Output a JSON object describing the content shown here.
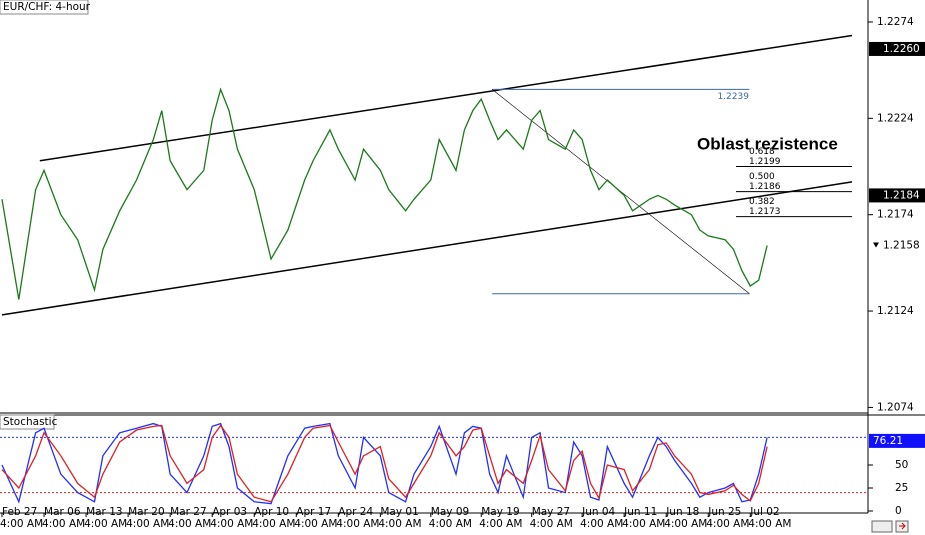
{
  "chart_data": [
    {
      "type": "line",
      "title": "EUR/CHF: 4-hour",
      "xlim": [
        0,
        103
      ],
      "xticks": [
        {
          "value": 0,
          "label": "Feb 27"
        },
        {
          "value": 5,
          "label": "Mar 06"
        },
        {
          "value": 10,
          "label": "Mar 13"
        },
        {
          "value": 15,
          "label": "Mar 20"
        },
        {
          "value": 20,
          "label": "Mar 27"
        },
        {
          "value": 25,
          "label": "Apr 03"
        },
        {
          "value": 30,
          "label": "Apr 10"
        },
        {
          "value": 35,
          "label": "Apr 17"
        },
        {
          "value": 40,
          "label": "Apr 24"
        },
        {
          "value": 45,
          "label": "May 01"
        },
        {
          "value": 51,
          "label": "May 09"
        },
        {
          "value": 57,
          "label": "May 19"
        },
        {
          "value": 63,
          "label": "May 27"
        },
        {
          "value": 69,
          "label": "Jun 04"
        },
        {
          "value": 74,
          "label": "Jun 11"
        },
        {
          "value": 79,
          "label": "Jun 18"
        },
        {
          "value": 84,
          "label": "Jun 25"
        },
        {
          "value": 89,
          "label": "Jul 02"
        }
      ],
      "xtick_time": "4:00 AM",
      "ylim": [
        1.20711,
        1.22854
      ],
      "yticks": [
        1.2274,
        1.2224,
        1.2174,
        1.2124,
        1.2074
      ],
      "price_markers": [
        {
          "value": 1.226,
          "label": "1.2260"
        },
        1.2184,
        1.2158
      ],
      "x": [
        0,
        2,
        4,
        5,
        7,
        9,
        11,
        12,
        14,
        16,
        18,
        19,
        20,
        22,
        24,
        25,
        26,
        27,
        28,
        30,
        32,
        34,
        36,
        37,
        39,
        40,
        42,
        43,
        45,
        46,
        48,
        49,
        51,
        52,
        54,
        55,
        56,
        57,
        58,
        59,
        60,
        62,
        63,
        64,
        65,
        67,
        68,
        69,
        70,
        71,
        72,
        74,
        75,
        77,
        78,
        79,
        80,
        82,
        83,
        84,
        86,
        87,
        88,
        89,
        90,
        91
      ],
      "series": [
        {
          "color": "#1a7a1a",
          "values": [
            1.2182,
            1.213,
            1.2187,
            1.2197,
            1.2174,
            1.2161,
            1.2135,
            1.2156,
            1.2176,
            1.2192,
            1.2213,
            1.2228,
            1.2202,
            1.2187,
            1.2197,
            1.2223,
            1.2239,
            1.2228,
            1.2208,
            1.2187,
            1.2151,
            1.2166,
            1.2192,
            1.2202,
            1.2218,
            1.2208,
            1.2192,
            1.2208,
            1.2197,
            1.2187,
            1.2176,
            1.2182,
            1.2192,
            1.2213,
            1.2197,
            1.2218,
            1.2228,
            1.2234,
            1.2223,
            1.2213,
            1.2218,
            1.2208,
            1.2223,
            1.2228,
            1.2213,
            1.2208,
            1.2218,
            1.2213,
            1.2197,
            1.2187,
            1.2192,
            1.2184,
            1.2176,
            1.2182,
            1.2184,
            1.2182,
            1.2179,
            1.2174,
            1.2166,
            1.2163,
            1.2161,
            1.2156,
            1.2145,
            1.2137,
            1.214,
            1.2158
          ]
        }
      ],
      "trendlines": [
        {
          "x": [
            4.5,
            101.1
          ],
          "y": [
            1.2202,
            1.2267
          ]
        },
        {
          "x": [
            0,
            101.1
          ],
          "y": [
            1.2122,
            1.2191
          ]
        }
      ],
      "fib": {
        "high": 1.2239,
        "low": 1.2133,
        "x": [
          58.3,
          88.9
        ],
        "levels_x": [
          87.3,
          101.1
        ],
        "levels": [
          {
            "ratio": 0.618,
            "price": 1.2199
          },
          {
            "ratio": {
              "value": 0.5,
              "label": "0.500"
            },
            "price": 1.2186
          },
          {
            "ratio": 0.382,
            "price": 1.2173
          }
        ]
      },
      "annotation": "Oblast rezistence"
    },
    {
      "type": "line",
      "title": "Stochastic",
      "ylim": [
        0,
        100
      ],
      "yticks": [
        50,
        25,
        0
      ],
      "marker": 76.21,
      "levels": [
        80,
        20
      ],
      "x": [
        0,
        2,
        4,
        5,
        7,
        9,
        11,
        12,
        14,
        16,
        18,
        19,
        20,
        22,
        24,
        25,
        26,
        27,
        28,
        30,
        32,
        34,
        36,
        37,
        39,
        40,
        42,
        43,
        45,
        46,
        48,
        49,
        51,
        52,
        54,
        55,
        56,
        57,
        58,
        59,
        60,
        62,
        63,
        64,
        65,
        67,
        68,
        69,
        70,
        71,
        72,
        74,
        75,
        77,
        78,
        79,
        80,
        82,
        83,
        84,
        86,
        87,
        88,
        89,
        90,
        91
      ],
      "series": [
        {
          "color": "#2030ff",
          "values": [
            50,
            10,
            85,
            90,
            40,
            20,
            10,
            60,
            85,
            90,
            95,
            92,
            40,
            20,
            60,
            92,
            95,
            70,
            25,
            10,
            8,
            60,
            90,
            92,
            95,
            60,
            25,
            80,
            60,
            20,
            10,
            40,
            70,
            92,
            40,
            85,
            92,
            90,
            40,
            20,
            60,
            15,
            80,
            85,
            25,
            20,
            75,
            60,
            15,
            12,
            70,
            30,
            15,
            60,
            80,
            70,
            55,
            30,
            15,
            20,
            25,
            30,
            10,
            12,
            40,
            80
          ]
        },
        {
          "color": "#e02020",
          "values": [
            45,
            25,
            60,
            85,
            60,
            30,
            15,
            40,
            75,
            88,
            92,
            93,
            60,
            30,
            45,
            80,
            93,
            80,
            40,
            15,
            10,
            40,
            80,
            90,
            93,
            75,
            40,
            60,
            70,
            35,
            15,
            30,
            60,
            85,
            60,
            70,
            88,
            90,
            60,
            30,
            45,
            30,
            55,
            82,
            45,
            22,
            55,
            65,
            30,
            14,
            50,
            45,
            22,
            45,
            72,
            74,
            60,
            40,
            20,
            18,
            22,
            28,
            18,
            11,
            30,
            70
          ]
        }
      ]
    }
  ]
}
